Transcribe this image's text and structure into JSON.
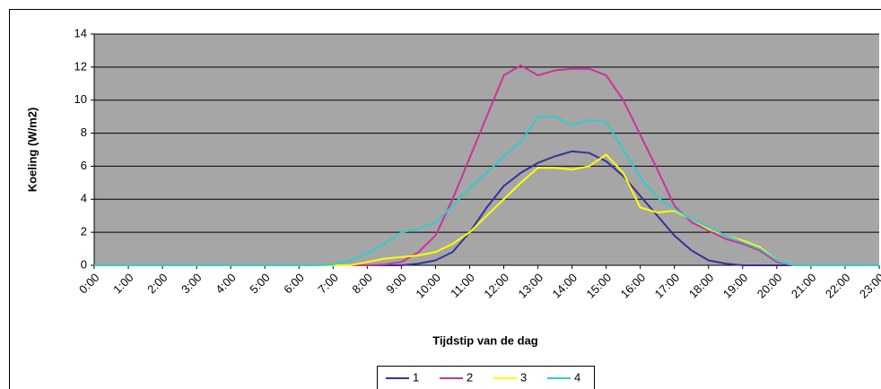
{
  "chart_data": {
    "type": "line",
    "y_label": "Koeling (W/m2)",
    "x_label": "Tijdstip van de dag",
    "x": [
      0,
      0.5,
      1,
      1.5,
      2,
      2.5,
      3,
      3.5,
      4,
      4.5,
      5,
      5.5,
      6,
      6.5,
      7,
      7.5,
      8,
      8.5,
      9,
      9.5,
      10,
      10.5,
      11,
      11.5,
      12,
      12.5,
      13,
      13.5,
      14,
      14.5,
      15,
      15.5,
      16,
      16.5,
      17,
      17.5,
      18,
      18.5,
      19,
      19.5,
      20,
      20.5,
      21,
      21.5,
      22,
      22.5,
      23
    ],
    "series": [
      {
        "name": "1",
        "color": "#333399",
        "values": [
          0,
          0,
          0,
          0,
          0,
          0,
          0,
          0,
          0,
          0,
          0,
          0,
          0,
          0,
          0,
          0,
          0,
          0,
          0,
          0.1,
          0.3,
          0.8,
          2.0,
          3.5,
          4.8,
          5.6,
          6.2,
          6.6,
          6.9,
          6.8,
          6.3,
          5.4,
          4.2,
          3.0,
          1.8,
          0.9,
          0.3,
          0.1,
          0,
          0,
          0,
          0,
          0,
          0,
          0,
          0,
          0
        ]
      },
      {
        "name": "2",
        "color": "#cc3399",
        "values": [
          0,
          0,
          0,
          0,
          0,
          0,
          0,
          0,
          0,
          0,
          0,
          0,
          0,
          0,
          0,
          0,
          0,
          0.05,
          0.2,
          0.8,
          1.8,
          4.0,
          6.5,
          9.0,
          11.5,
          12.1,
          11.5,
          11.8,
          11.9,
          11.9,
          11.5,
          10.0,
          7.9,
          5.8,
          3.6,
          2.6,
          2.1,
          1.6,
          1.3,
          0.9,
          0.2,
          0,
          0,
          0,
          0,
          0,
          0
        ]
      },
      {
        "name": "3",
        "color": "#ffff00",
        "values": [
          0,
          0,
          0,
          0,
          0,
          0,
          0,
          0,
          0,
          0,
          0,
          0,
          0,
          0,
          0,
          0,
          0.2,
          0.4,
          0.5,
          0.6,
          0.8,
          1.3,
          2.0,
          3.0,
          4.0,
          5.0,
          5.9,
          5.9,
          5.8,
          6.0,
          6.7,
          5.6,
          3.5,
          3.2,
          3.3,
          2.8,
          2.2,
          1.8,
          1.5,
          1.1,
          0.3,
          0,
          0,
          0,
          0,
          0,
          0
        ]
      },
      {
        "name": "4",
        "color": "#33cccc",
        "values": [
          0,
          0,
          0,
          0,
          0,
          0,
          0,
          0,
          0,
          0,
          0,
          0,
          0,
          0,
          0.05,
          0.3,
          0.7,
          1.3,
          2.0,
          2.2,
          2.6,
          3.6,
          4.7,
          5.6,
          6.6,
          7.5,
          9.0,
          9.0,
          8.5,
          8.8,
          8.7,
          7.0,
          5.3,
          4.1,
          3.4,
          2.8,
          2.3,
          1.8,
          1.4,
          1.0,
          0.3,
          0,
          0,
          0,
          0,
          0,
          0
        ]
      }
    ],
    "xlim": [
      0,
      23
    ],
    "xticks": [
      {
        "value": 0,
        "label": "0:00"
      },
      {
        "value": 1,
        "label": "1:00"
      },
      {
        "value": 2,
        "label": "2:00"
      },
      {
        "value": 3,
        "label": "3:00"
      },
      {
        "value": 4,
        "label": "4:00"
      },
      {
        "value": 5,
        "label": "5:00"
      },
      {
        "value": 6,
        "label": "6:00"
      },
      {
        "value": 7,
        "label": "7:00"
      },
      {
        "value": 8,
        "label": "8:00"
      },
      {
        "value": 9,
        "label": "9:00"
      },
      {
        "value": 10,
        "label": "10:00"
      },
      {
        "value": 11,
        "label": "11:00"
      },
      {
        "value": 12,
        "label": "12:00"
      },
      {
        "value": 13,
        "label": "13:00"
      },
      {
        "value": 14,
        "label": "14:00"
      },
      {
        "value": 15,
        "label": "15:00"
      },
      {
        "value": 16,
        "label": "16:00"
      },
      {
        "value": 17,
        "label": "17:00"
      },
      {
        "value": 18,
        "label": "18:00"
      },
      {
        "value": 19,
        "label": "19:00"
      },
      {
        "value": 20,
        "label": "20:00"
      },
      {
        "value": 21,
        "label": "21:00"
      },
      {
        "value": 22,
        "label": "22:00"
      },
      {
        "value": 23,
        "label": "23:00"
      }
    ],
    "ylim": [
      0,
      14
    ],
    "yticks": [
      0,
      2,
      4,
      6,
      8,
      10,
      12,
      14
    ],
    "grid": true,
    "legend": "bottom"
  }
}
